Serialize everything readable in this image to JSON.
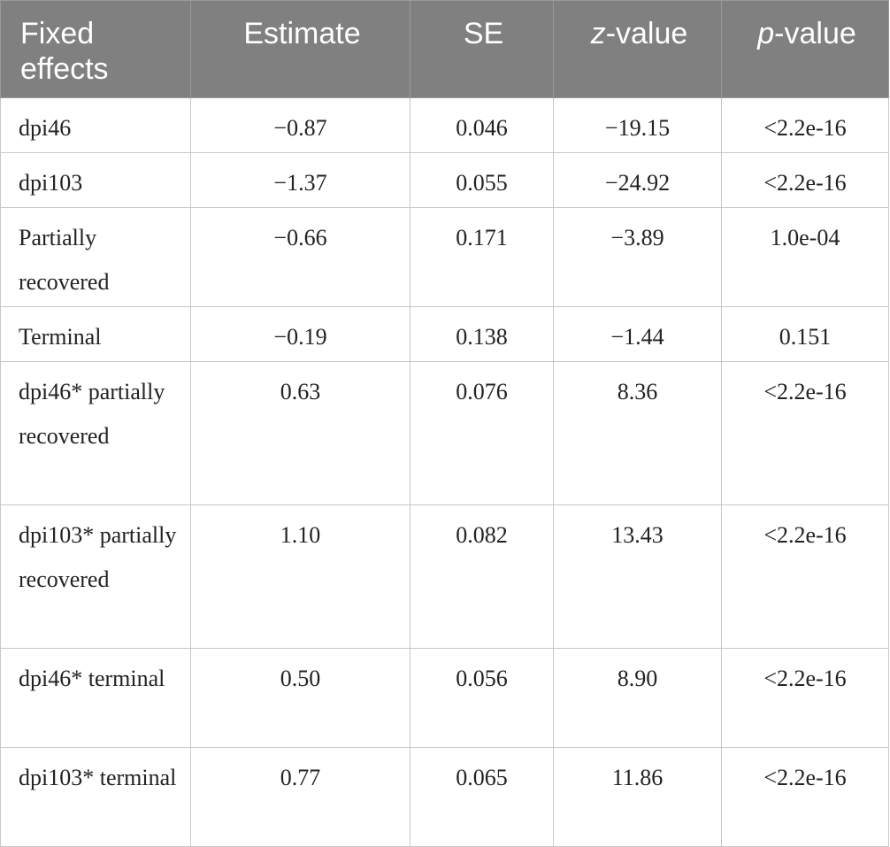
{
  "table": {
    "headers": {
      "col1": "Fixed effects",
      "col2": "Estimate",
      "col3": "SE",
      "col4_italic": "z",
      "col4_rest": "-value",
      "col5_italic": "p",
      "col5_rest": "-value"
    },
    "rows": [
      {
        "effect": "dpi46",
        "estimate": "−0.87",
        "se": "0.046",
        "z": "−19.15",
        "p": "<2.2e-16"
      },
      {
        "effect": "dpi103",
        "estimate": "−1.37",
        "se": "0.055",
        "z": "−24.92",
        "p": "<2.2e-16"
      },
      {
        "effect": "Partially recovered",
        "estimate": "−0.66",
        "se": "0.171",
        "z": "−3.89",
        "p": "1.0e-04"
      },
      {
        "effect": "Terminal",
        "estimate": "−0.19",
        "se": "0.138",
        "z": "−1.44",
        "p": "0.151"
      },
      {
        "effect": "dpi46* partially recovered",
        "estimate": "0.63",
        "se": "0.076",
        "z": "8.36",
        "p": "<2.2e-16"
      },
      {
        "effect": "dpi103* partially recovered",
        "estimate": "1.10",
        "se": "0.082",
        "z": "13.43",
        "p": "<2.2e-16"
      },
      {
        "effect": "dpi46* terminal",
        "estimate": "0.50",
        "se": "0.056",
        "z": "8.90",
        "p": "<2.2e-16"
      },
      {
        "effect": "dpi103* terminal",
        "estimate": "0.77",
        "se": "0.065",
        "z": "11.86",
        "p": "<2.2e-16"
      }
    ]
  }
}
